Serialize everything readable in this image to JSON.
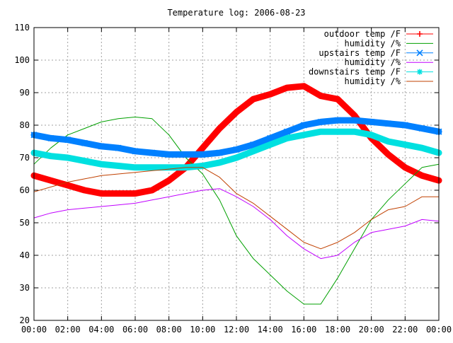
{
  "chart_data": {
    "type": "line",
    "title": "Temperature log: 2006-08-23",
    "xlabel": "",
    "ylabel": "",
    "xlim": [
      "00:00",
      "24:00"
    ],
    "ylim": [
      20,
      110
    ],
    "x_ticks": [
      "00:00",
      "02:00",
      "04:00",
      "06:00",
      "08:00",
      "10:00",
      "12:00",
      "14:00",
      "16:00",
      "18:00",
      "20:00",
      "22:00",
      "00:00"
    ],
    "y_ticks": [
      20,
      30,
      40,
      50,
      60,
      70,
      80,
      90,
      100,
      110
    ],
    "grid": true,
    "legend_position": "top-right",
    "x_hours": [
      0,
      1,
      2,
      3,
      4,
      5,
      6,
      7,
      8,
      9,
      10,
      11,
      12,
      13,
      14,
      15,
      16,
      17,
      18,
      19,
      20,
      21,
      22,
      23,
      24
    ],
    "series": [
      {
        "name": "outdoor temp /F",
        "color": "#ff0000",
        "marker": "plus",
        "values": [
          64.5,
          63,
          61.5,
          60,
          59,
          59,
          59,
          60,
          63,
          67,
          73,
          79,
          84,
          88,
          89.5,
          91.5,
          92,
          89,
          88,
          83,
          76,
          71,
          67,
          64.5,
          63
        ]
      },
      {
        "name": "humidity /%",
        "color": "#00a000",
        "marker": "none",
        "values": [
          68,
          73,
          77,
          79,
          81,
          82,
          82.5,
          82,
          77,
          70,
          65,
          57,
          46,
          39,
          34,
          29,
          25,
          25,
          33,
          42,
          51,
          57,
          62,
          67,
          68
        ]
      },
      {
        "name": "upstairs temp /F",
        "color": "#0080ff",
        "marker": "cross",
        "values": [
          77,
          76,
          75.5,
          74.5,
          73.5,
          73,
          72,
          71.5,
          71,
          71,
          71,
          71.5,
          72.5,
          74,
          76,
          78,
          80,
          81,
          81.5,
          81.5,
          81,
          80.5,
          80,
          79,
          78
        ]
      },
      {
        "name": "humidity /%",
        "color": "#c000ff",
        "marker": "none",
        "values": [
          51.5,
          53,
          54,
          54.5,
          55,
          55.5,
          56,
          57,
          58,
          59,
          60,
          60.5,
          58,
          55,
          51,
          46,
          42,
          39,
          40,
          44,
          47,
          48,
          49,
          51,
          50.5
        ]
      },
      {
        "name": "downstairs temp /F",
        "color": "#00e0e0",
        "marker": "star",
        "values": [
          71.5,
          70.5,
          70,
          69,
          68,
          67.5,
          67,
          67,
          67,
          67,
          67.5,
          68.5,
          70,
          72,
          74,
          76,
          77,
          78,
          78,
          78,
          77,
          75,
          74,
          73,
          71.5
        ]
      },
      {
        "name": "humidity /%",
        "color": "#c04000",
        "marker": "none",
        "values": [
          59.5,
          61,
          62.5,
          63.5,
          64.5,
          65,
          65.5,
          66,
          66.5,
          67,
          67,
          64,
          59,
          56,
          52,
          48,
          44,
          42,
          44,
          47,
          51,
          54,
          55,
          58,
          58
        ]
      }
    ]
  }
}
